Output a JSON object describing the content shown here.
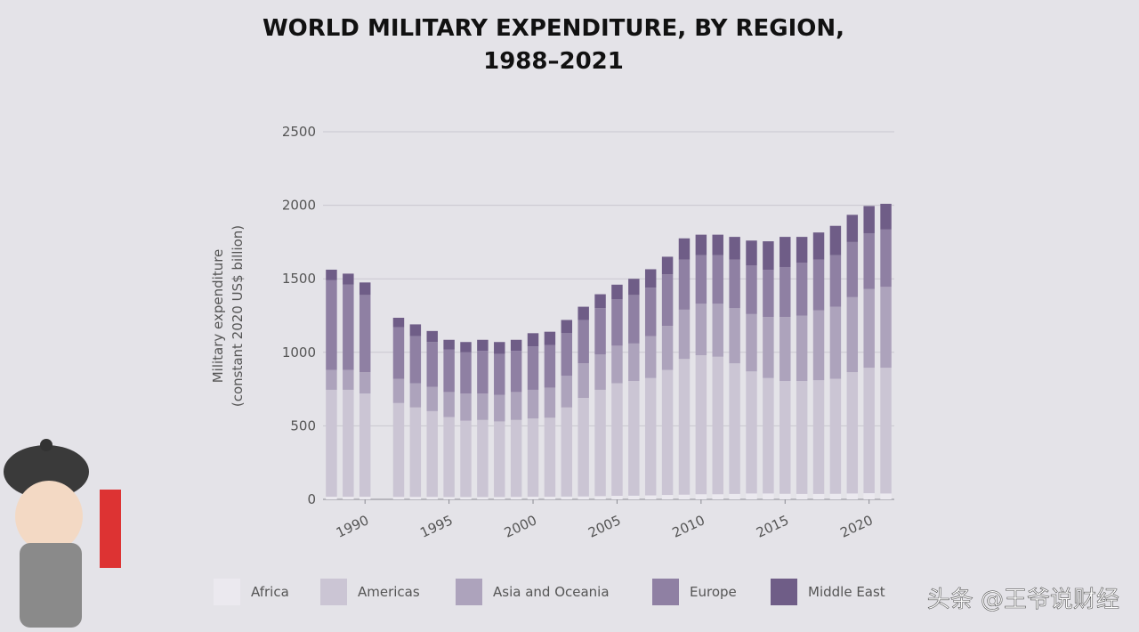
{
  "chart_data": {
    "type": "stacked-bar",
    "title": [
      "WORLD MILITARY EXPENDITURE, BY REGION,",
      "1988–2021"
    ],
    "ylabel": [
      "Military expenditure",
      "(constant 2020 US$ billion)"
    ],
    "x": [
      1988,
      1989,
      1990,
      1992,
      1993,
      1994,
      1995,
      1996,
      1997,
      1998,
      1999,
      2000,
      2001,
      2002,
      2003,
      2004,
      2005,
      2006,
      2007,
      2008,
      2009,
      2010,
      2011,
      2012,
      2013,
      2014,
      2015,
      2016,
      2017,
      2018,
      2019,
      2020,
      2021
    ],
    "xlim": [
      1987.5,
      2021.5
    ],
    "xticks": [
      1990,
      1995,
      2000,
      2005,
      2010,
      2015,
      2020
    ],
    "ylim": [
      0,
      2500
    ],
    "yticks": [
      0,
      500,
      1000,
      1500,
      2000,
      2500
    ],
    "grid": true,
    "legend": "bottom",
    "series": [
      {
        "name": "Africa",
        "color": "#ebe9ef",
        "values": [
          18,
          18,
          18,
          17,
          17,
          17,
          16,
          16,
          16,
          16,
          17,
          18,
          18,
          19,
          20,
          22,
          24,
          25,
          27,
          30,
          32,
          35,
          35,
          37,
          40,
          40,
          38,
          37,
          37,
          38,
          40,
          42,
          40
        ]
      },
      {
        "name": "Americas",
        "color": "#cbc5d4",
        "values": [
          727,
          727,
          702,
          638,
          608,
          583,
          544,
          519,
          524,
          514,
          523,
          532,
          537,
          606,
          670,
          723,
          766,
          780,
          798,
          850,
          923,
          945,
          935,
          888,
          830,
          785,
          767,
          768,
          773,
          782,
          825,
          853,
          855
        ]
      },
      {
        "name": "Asia and Oceania",
        "color": "#ada3bc",
        "values": [
          135,
          135,
          145,
          165,
          165,
          165,
          170,
          185,
          180,
          180,
          190,
          195,
          205,
          215,
          235,
          240,
          255,
          255,
          285,
          300,
          335,
          350,
          360,
          375,
          390,
          415,
          435,
          445,
          475,
          490,
          510,
          535,
          550
        ]
      },
      {
        "name": "Europe",
        "color": "#8f80a3",
        "values": [
          610,
          580,
          525,
          350,
          320,
          305,
          290,
          280,
          290,
          280,
          280,
          295,
          290,
          290,
          295,
          315,
          315,
          330,
          330,
          350,
          340,
          330,
          330,
          330,
          330,
          320,
          340,
          360,
          345,
          350,
          375,
          380,
          390
        ]
      },
      {
        "name": "Middle East",
        "color": "#6f5d87",
        "values": [
          72,
          75,
          85,
          65,
          80,
          75,
          65,
          70,
          75,
          80,
          75,
          90,
          90,
          90,
          90,
          95,
          100,
          110,
          125,
          120,
          145,
          140,
          140,
          155,
          170,
          195,
          205,
          175,
          185,
          200,
          185,
          185,
          175
        ]
      }
    ],
    "watermark": "头条 @王爷说财经"
  }
}
